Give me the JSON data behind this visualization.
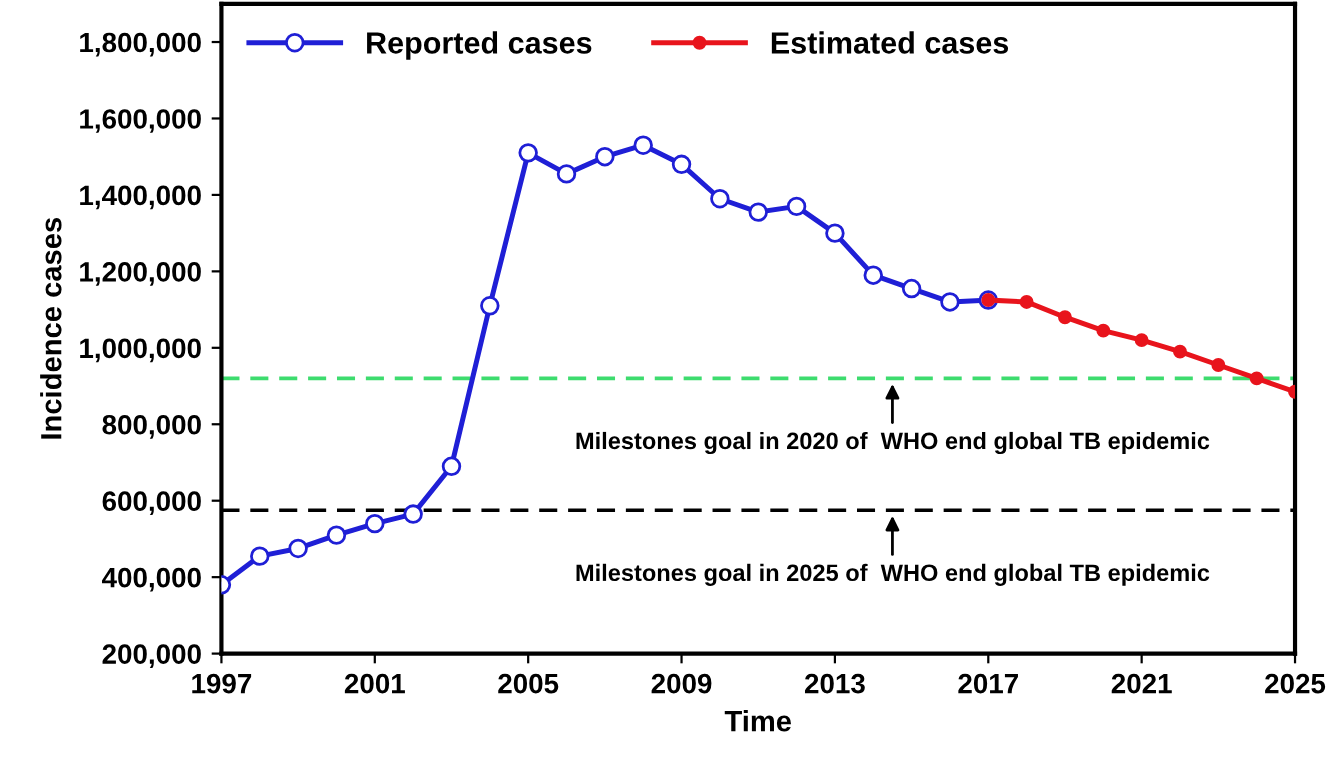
{
  "chart_data": {
    "type": "line",
    "xlabel": "Time",
    "ylabel": "Incidence cases",
    "xlim": [
      1997,
      2025
    ],
    "xticks": [
      1997,
      2001,
      2005,
      2009,
      2013,
      2017,
      2021,
      2025
    ],
    "ylim": [
      200000,
      1900000
    ],
    "yticks": [
      {
        "value": 200000,
        "label": "200,000"
      },
      {
        "value": 400000,
        "label": "400,000"
      },
      {
        "value": 600000,
        "label": "600,000"
      },
      {
        "value": 800000,
        "label": "800,000"
      },
      {
        "value": 1000000,
        "label": "1,000,000"
      },
      {
        "value": 1200000,
        "label": "1,200,000"
      },
      {
        "value": 1400000,
        "label": "1,400,000"
      },
      {
        "value": 1600000,
        "label": "1,600,000"
      },
      {
        "value": 1800000,
        "label": "1,800,000"
      }
    ],
    "series": [
      {
        "name": "Reported cases",
        "color": "#1f1fd6",
        "marker": "circle",
        "x": [
          1997,
          1998,
          1999,
          2000,
          2001,
          2002,
          2003,
          2004,
          2005,
          2006,
          2007,
          2008,
          2009,
          2010,
          2011,
          2012,
          2013,
          2014,
          2015,
          2016,
          2017
        ],
        "values": [
          380000,
          455000,
          475000,
          510000,
          540000,
          565000,
          690000,
          1110000,
          1510000,
          1455000,
          1500000,
          1530000,
          1480000,
          1390000,
          1355000,
          1370000,
          1300000,
          1190000,
          1155000,
          1120000,
          1125000
        ]
      },
      {
        "name": "Estimated cases",
        "color": "#e8141c",
        "marker": "circle",
        "x": [
          2017,
          2018,
          2019,
          2020,
          2021,
          2022,
          2023,
          2024,
          2025
        ],
        "values": [
          1125000,
          1120000,
          1080000,
          1045000,
          1020000,
          990000,
          955000,
          920000,
          885000
        ]
      }
    ],
    "ref_lines": [
      {
        "axis": "y",
        "value": 920000,
        "color": "#3ddc6e",
        "line_style": "dashed"
      },
      {
        "axis": "y",
        "value": 575000,
        "color": "#000000",
        "line_style": "dashed"
      }
    ],
    "annotations": [
      {
        "text": "Milestones goal in 2020 of  WHO end global TB epidemic",
        "x": 2014.5,
        "y": 920000
      },
      {
        "text": "Milestones goal in 2025 of  WHO end global TB epidemic",
        "x": 2014.5,
        "y": 575000
      }
    ],
    "legend": "top left",
    "grid": false
  }
}
